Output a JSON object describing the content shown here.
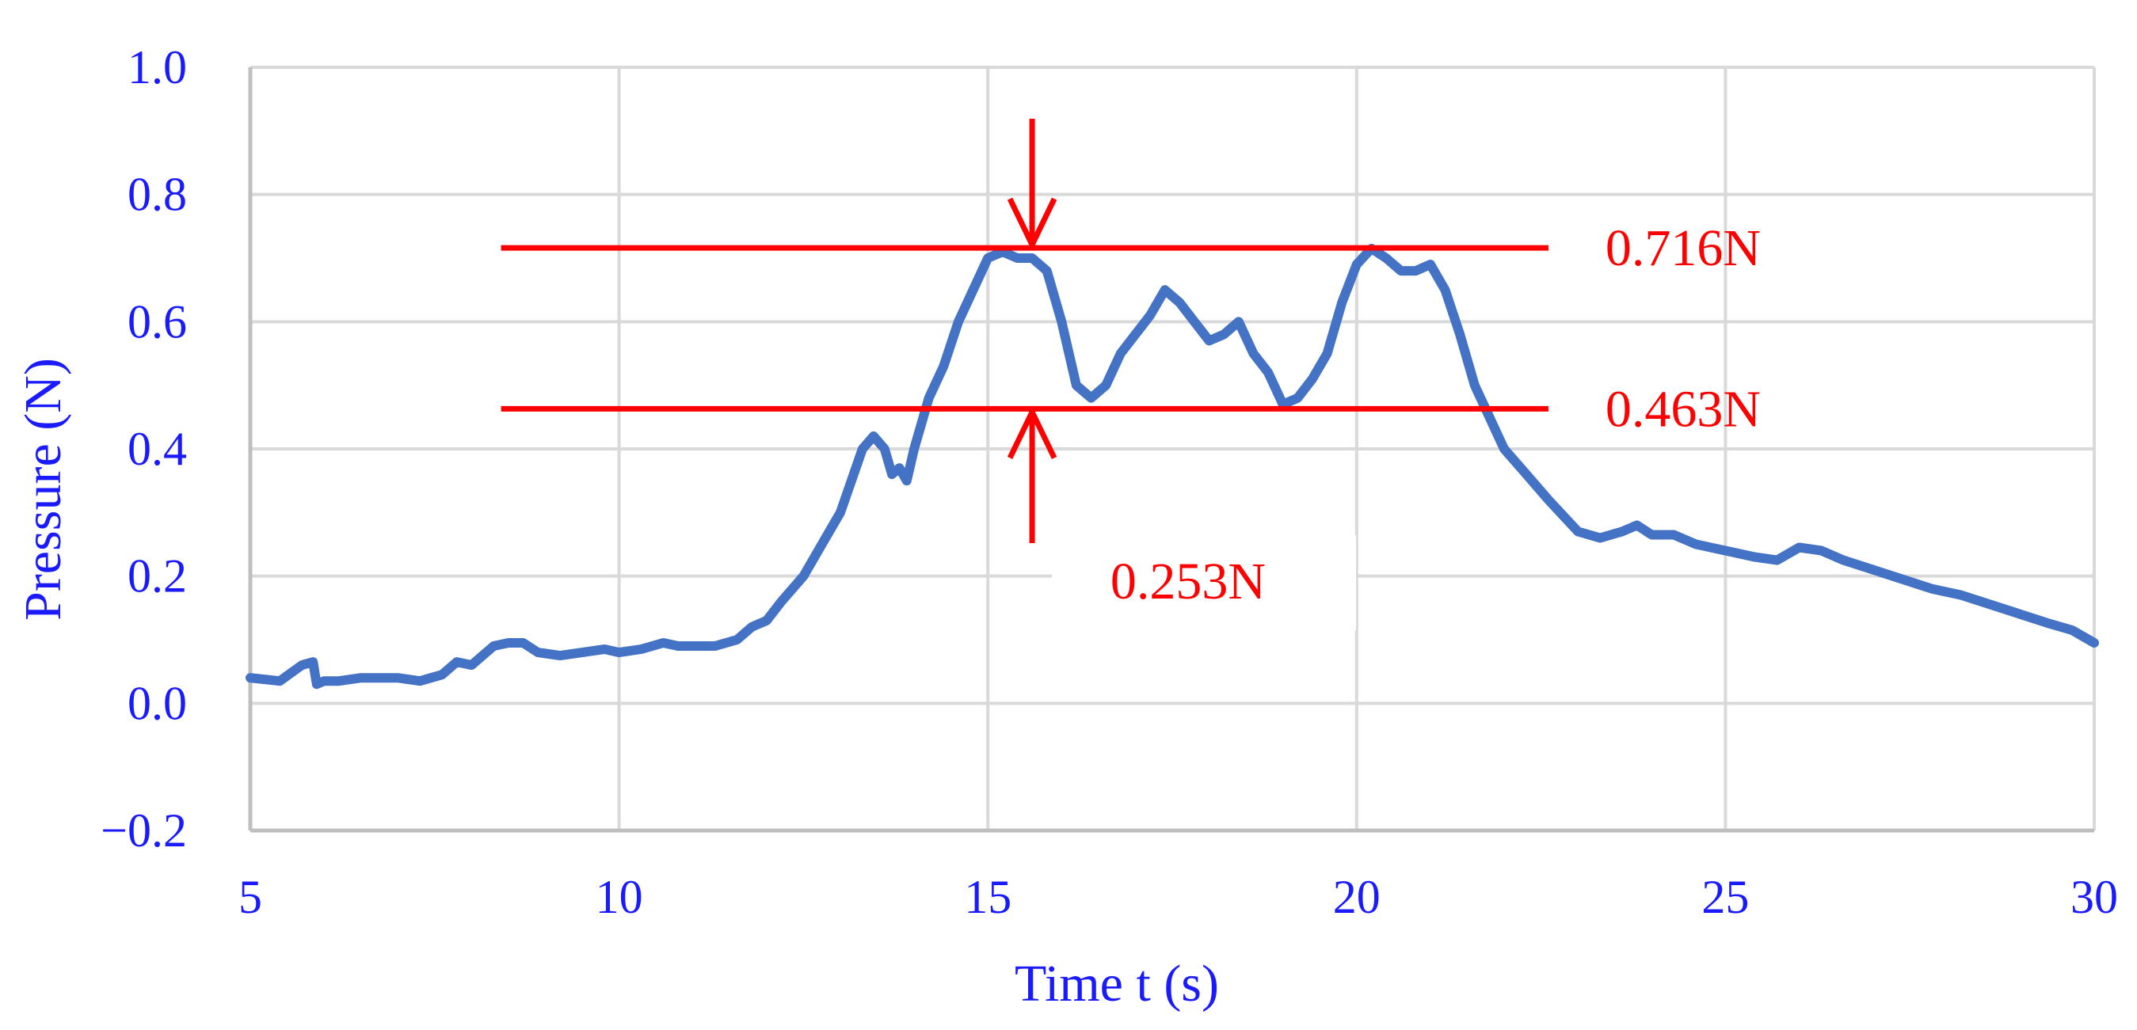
{
  "chart_data": {
    "type": "line",
    "title": "",
    "xlabel": "Time t (s)",
    "ylabel": "Pressure (N)",
    "xlim": [
      5,
      30
    ],
    "ylim": [
      -0.2,
      1.0
    ],
    "x_ticks": [
      5,
      10,
      15,
      20,
      25,
      30
    ],
    "y_ticks": [
      -0.2,
      0.0,
      0.2,
      0.4,
      0.6,
      0.8,
      1.0
    ],
    "x_tick_labels": [
      "5",
      "10",
      "15",
      "20",
      "25",
      "30"
    ],
    "y_tick_labels": [
      "−0.2",
      "0.0",
      "0.2",
      "0.4",
      "0.6",
      "0.8",
      "1.0"
    ],
    "grid": true,
    "legend": false,
    "series": [
      {
        "color": "#4472c4",
        "x": [
          5.0,
          5.4,
          5.7,
          5.85,
          5.9,
          6.0,
          6.2,
          6.5,
          6.8,
          7.0,
          7.3,
          7.6,
          7.8,
          8.0,
          8.3,
          8.5,
          8.7,
          8.9,
          9.2,
          9.5,
          9.8,
          10.0,
          10.3,
          10.6,
          10.8,
          11.0,
          11.3,
          11.6,
          11.8,
          12.0,
          12.2,
          12.5,
          12.8,
          13.0,
          13.3,
          13.45,
          13.6,
          13.7,
          13.8,
          13.9,
          14.0,
          14.2,
          14.4,
          14.6,
          14.8,
          15.0,
          15.2,
          15.4,
          15.6,
          15.8,
          16.0,
          16.2,
          16.4,
          16.6,
          16.8,
          17.0,
          17.2,
          17.4,
          17.6,
          17.8,
          18.0,
          18.2,
          18.4,
          18.6,
          18.8,
          19.0,
          19.2,
          19.4,
          19.6,
          19.8,
          20.0,
          20.2,
          20.4,
          20.6,
          20.8,
          21.0,
          21.2,
          21.4,
          21.6,
          21.8,
          22.0,
          22.3,
          22.6,
          23.0,
          23.3,
          23.6,
          23.8,
          24.0,
          24.3,
          24.6,
          25.0,
          25.4,
          25.7,
          26.0,
          26.3,
          26.6,
          27.0,
          27.4,
          27.8,
          28.2,
          28.6,
          29.0,
          29.4,
          29.7,
          30.0
        ],
        "y": [
          0.04,
          0.035,
          0.06,
          0.065,
          0.03,
          0.035,
          0.035,
          0.04,
          0.04,
          0.04,
          0.035,
          0.045,
          0.065,
          0.06,
          0.09,
          0.095,
          0.095,
          0.08,
          0.075,
          0.08,
          0.085,
          0.08,
          0.085,
          0.095,
          0.09,
          0.09,
          0.09,
          0.1,
          0.12,
          0.13,
          0.16,
          0.2,
          0.26,
          0.3,
          0.4,
          0.42,
          0.4,
          0.36,
          0.37,
          0.35,
          0.4,
          0.48,
          0.53,
          0.6,
          0.65,
          0.7,
          0.71,
          0.7,
          0.7,
          0.68,
          0.6,
          0.5,
          0.48,
          0.5,
          0.55,
          0.58,
          0.61,
          0.65,
          0.63,
          0.6,
          0.57,
          0.58,
          0.6,
          0.55,
          0.52,
          0.47,
          0.48,
          0.51,
          0.55,
          0.63,
          0.69,
          0.715,
          0.7,
          0.68,
          0.68,
          0.69,
          0.65,
          0.58,
          0.5,
          0.45,
          0.4,
          0.36,
          0.32,
          0.27,
          0.26,
          0.27,
          0.28,
          0.265,
          0.265,
          0.25,
          0.24,
          0.23,
          0.225,
          0.245,
          0.24,
          0.225,
          0.21,
          0.195,
          0.18,
          0.17,
          0.155,
          0.14,
          0.125,
          0.115,
          0.095
        ]
      }
    ],
    "reference_lines": [
      {
        "y": 0.716,
        "x_start": 8.4,
        "x_end": 22.6,
        "label": "0.716N",
        "color": "#ff0000"
      },
      {
        "y": 0.463,
        "x_start": 8.4,
        "x_end": 22.6,
        "label": "0.463N",
        "color": "#ff0000"
      }
    ],
    "difference_annotation": {
      "x": 15.6,
      "label": "0.253N",
      "color": "#ff0000"
    }
  }
}
